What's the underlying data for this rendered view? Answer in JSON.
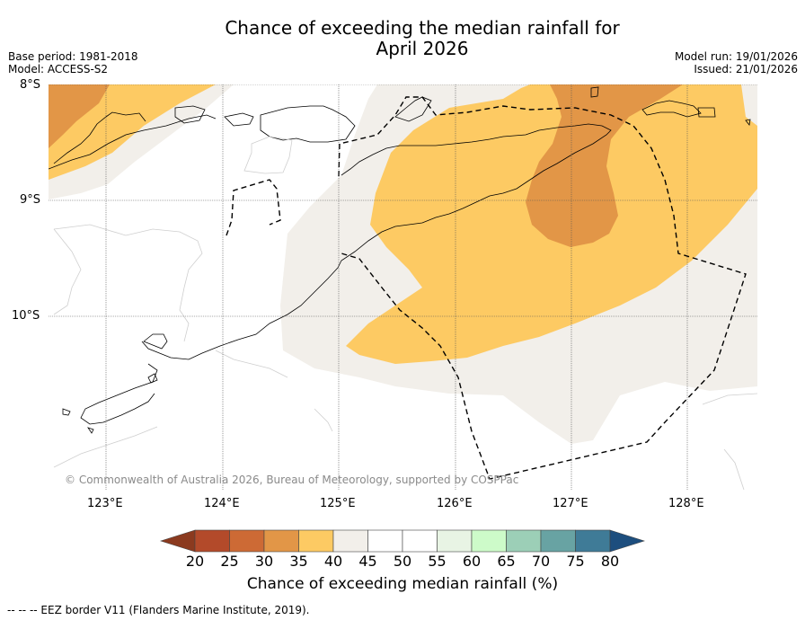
{
  "title": {
    "line1": "Chance of exceeding the median rainfall for",
    "line2": "April 2026"
  },
  "meta": {
    "base_period": "Base period: 1981-2018",
    "model": "Model: ACCESS-S2",
    "model_run": "Model run: 19/01/2026",
    "issued": "Issued: 21/01/2026"
  },
  "map": {
    "lat_labels": [
      "8°S",
      "9°S",
      "10°S"
    ],
    "lon_labels": [
      "123°E",
      "124°E",
      "125°E",
      "126°E",
      "127°E",
      "128°E"
    ],
    "copyright": "© Commonwealth of Australia 2026, Bureau of Meteorology, supported by COSPPac"
  },
  "colorbar": {
    "title": "Chance of exceeding median rainfall (%)",
    "ticks": [
      "20",
      "25",
      "30",
      "35",
      "40",
      "45",
      "50",
      "55",
      "60",
      "65",
      "70",
      "75",
      "80"
    ],
    "colors": {
      "below20": "#8b3a1f",
      "c20_25": "#b34a2a",
      "c25_30": "#cd6a35",
      "c30_35": "#e29647",
      "c35_40": "#fdca63",
      "c40_45": "#f2efea",
      "c45_50": "#ffffff",
      "c50_55": "#ffffff",
      "c55_60": "#e8f4e4",
      "c60_65": "#cdfbc9",
      "c65_70": "#9ccfb7",
      "c70_75": "#68a3a3",
      "c75_80": "#3f7b97",
      "above80": "#1d4e7e"
    }
  },
  "footer": "--  --  -- EEZ border V11 (Flanders Marine Institute, 2019)."
}
